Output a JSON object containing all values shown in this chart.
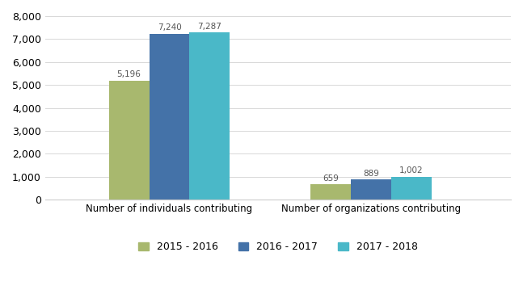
{
  "categories": [
    "Number of individuals contributing",
    "Number of organizations contributing"
  ],
  "series": [
    {
      "label": "2015 - 2016",
      "values": [
        5196,
        659
      ],
      "color": "#a8b86e"
    },
    {
      "label": "2016 - 2017",
      "values": [
        7240,
        889
      ],
      "color": "#4472a8"
    },
    {
      "label": "2017 - 2018",
      "values": [
        7287,
        1002
      ],
      "color": "#4ab8c8"
    }
  ],
  "ylim": [
    0,
    8000
  ],
  "yticks": [
    0,
    1000,
    2000,
    3000,
    4000,
    5000,
    6000,
    7000,
    8000
  ],
  "bar_width": 0.13,
  "group_positions": [
    0.35,
    1.0
  ],
  "label_fontsize": 8.5,
  "tick_fontsize": 9,
  "legend_fontsize": 9,
  "background_color": "#ffffff",
  "grid_color": "#d8d8d8",
  "value_label_fontsize": 7.5
}
